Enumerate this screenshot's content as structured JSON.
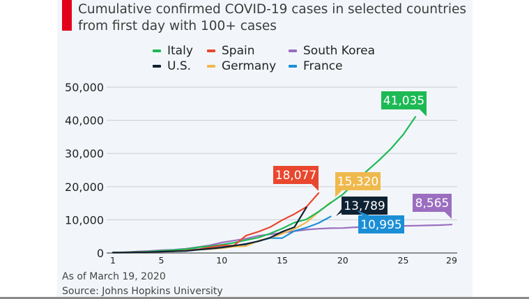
{
  "chart_data": {
    "type": "line",
    "title": "Cumulative confirmed COVID-19 cases in selected countries from first day with 100+ cases",
    "xlabel": "",
    "ylabel": "",
    "xlim": [
      1,
      29
    ],
    "ylim": [
      0,
      50000
    ],
    "x_ticks": [
      1,
      5,
      10,
      15,
      20,
      25,
      29
    ],
    "y_ticks": [
      0,
      10000,
      20000,
      30000,
      40000,
      50000
    ],
    "y_tick_labels": [
      "0",
      "10,000",
      "20,000",
      "30,000",
      "40,000",
      "50,000"
    ],
    "grid": true,
    "legend_position": "top-center",
    "series": [
      {
        "name": "Italy",
        "color": "#1db954",
        "end_label": "41,035",
        "values": [
          155,
          229,
          322,
          453,
          655,
          888,
          1128,
          1694,
          2036,
          2502,
          3089,
          3858,
          4636,
          5883,
          7375,
          9172,
          10149,
          12462,
          15113,
          17660,
          21157,
          24747,
          27980,
          31506,
          35713,
          41035
        ]
      },
      {
        "name": "Spain",
        "color": "#e8472e",
        "end_label": "18,077",
        "values": [
          120,
          165,
          222,
          259,
          400,
          500,
          673,
          1073,
          1695,
          2277,
          2277,
          5232,
          6391,
          7798,
          9942,
          11748,
          13910,
          18077
        ]
      },
      {
        "name": "South Korea",
        "color": "#9b6ec0",
        "end_label": "8,565",
        "values": [
          104,
          204,
          433,
          602,
          833,
          977,
          1261,
          1766,
          2337,
          3150,
          3736,
          4335,
          5186,
          5621,
          6088,
          6593,
          7041,
          7314,
          7478,
          7513,
          7755,
          7869,
          7979,
          8086,
          8162,
          8236,
          8320,
          8413,
          8565
        ]
      },
      {
        "name": "U.S.",
        "color": "#0f2233",
        "end_label": "13,789",
        "values": [
          118,
          149,
          217,
          262,
          402,
          518,
          583,
          959,
          1281,
          1663,
          2179,
          2727,
          3499,
          4632,
          6421,
          7786,
          13789
        ]
      },
      {
        "name": "Germany",
        "color": "#f0b94d",
        "end_label": "15,320",
        "values": [
          130,
          159,
          196,
          262,
          482,
          670,
          799,
          1040,
          1176,
          1457,
          1908,
          2078,
          3675,
          4585,
          5795,
          7272,
          9257,
          12327,
          15320
        ]
      },
      {
        "name": "France",
        "color": "#1b8fd6",
        "end_label": "10,995",
        "values": [
          130,
          191,
          204,
          285,
          377,
          653,
          949,
          1126,
          1209,
          1784,
          2281,
          2281,
          3661,
          4469,
          4499,
          6633,
          7652,
          9043,
          10995
        ]
      }
    ]
  },
  "legend": [
    {
      "label": "Italy",
      "color": "#1db954"
    },
    {
      "label": "Spain",
      "color": "#e8472e"
    },
    {
      "label": "South Korea",
      "color": "#9b6ec0"
    },
    {
      "label": "U.S.",
      "color": "#0f2233"
    },
    {
      "label": "Germany",
      "color": "#f0b94d"
    },
    {
      "label": "France",
      "color": "#1b8fd6"
    }
  ],
  "footer": {
    "as_of": "As of March 19, 2020",
    "source": "Source: Johns Hopkins University"
  },
  "colors": {
    "accent": "#e2001a",
    "panel_bg": "#f2f6fa",
    "grid": "#cfd3d8"
  }
}
